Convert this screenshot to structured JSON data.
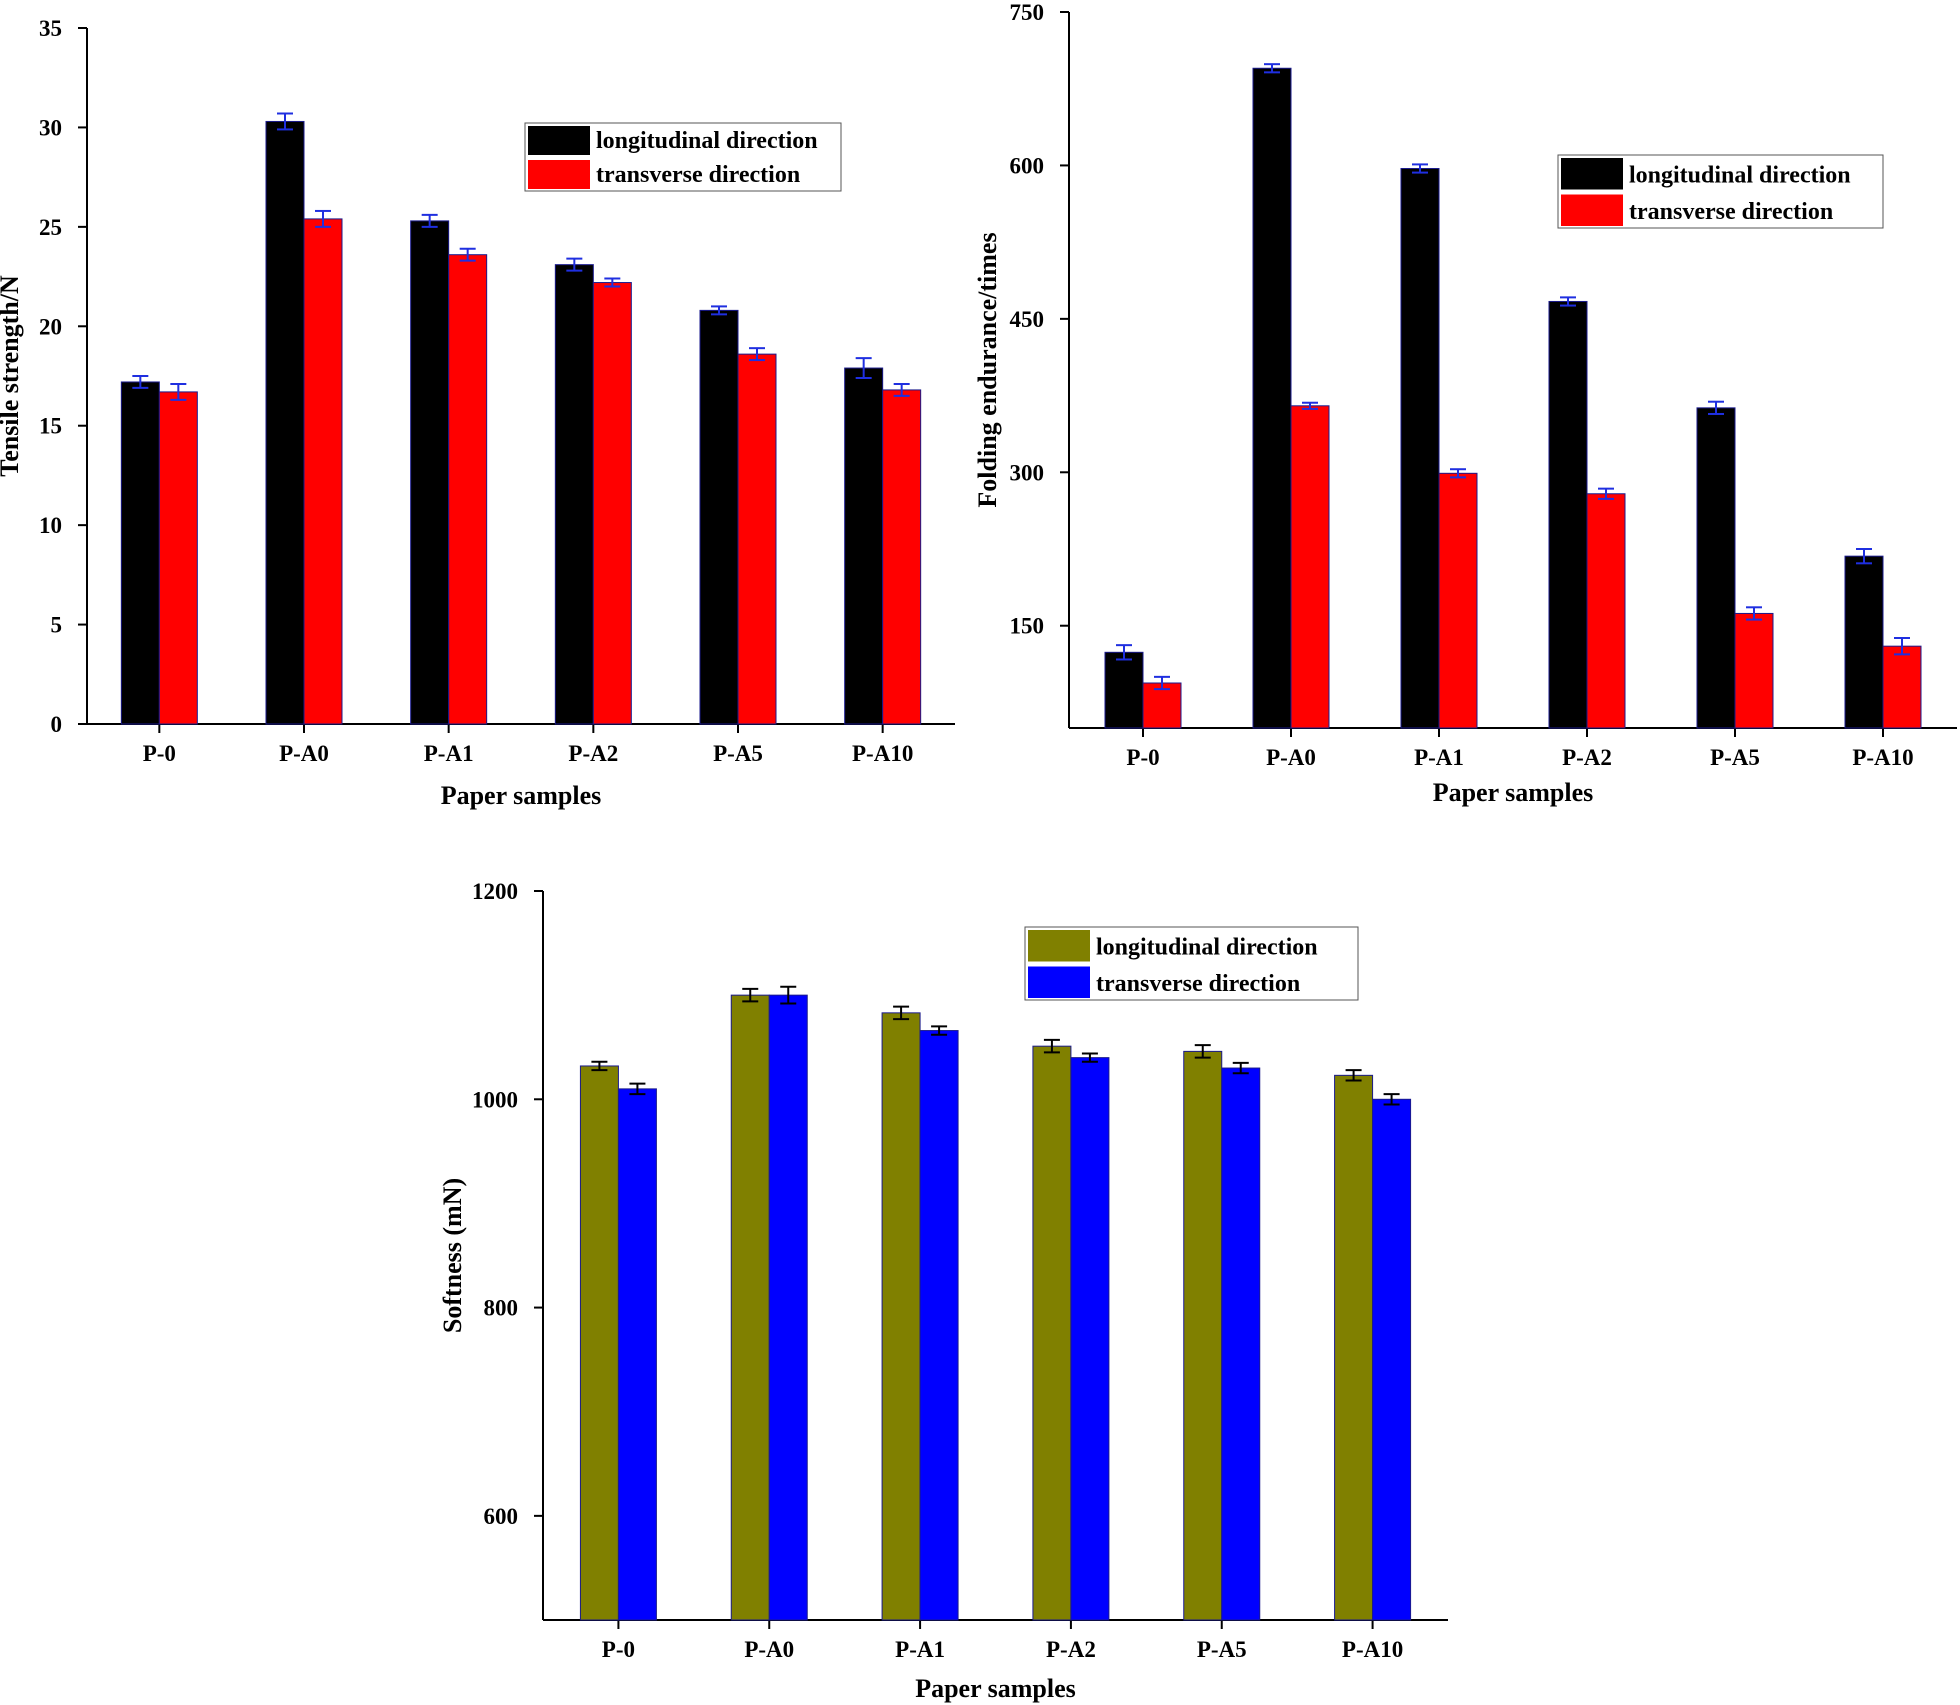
{
  "charts": [
    {
      "type": "bar",
      "categories": [
        "P-0",
        "P-A0",
        "P-A1",
        "P-A2",
        "P-A5",
        "P-A10"
      ],
      "xlabel": "Paper samples",
      "ylabel": "Tensile strength/N",
      "ylim": [
        0,
        35
      ],
      "yticks": [
        0,
        5,
        10,
        15,
        20,
        25,
        30,
        35
      ],
      "legend_position": "top-right",
      "series": [
        {
          "name": "longitudinal direction",
          "color": "#000000",
          "values": [
            17.2,
            30.3,
            25.3,
            23.1,
            20.8,
            17.9
          ],
          "errors": [
            0.3,
            0.4,
            0.3,
            0.3,
            0.2,
            0.5
          ]
        },
        {
          "name": "transverse direction",
          "color": "#ff0000",
          "values": [
            16.7,
            25.4,
            23.6,
            22.2,
            18.6,
            16.8
          ],
          "errors": [
            0.4,
            0.4,
            0.3,
            0.2,
            0.3,
            0.3
          ]
        }
      ]
    },
    {
      "type": "bar",
      "categories": [
        "P-0",
        "P-A0",
        "P-A1",
        "P-A2",
        "P-A5",
        "P-A10"
      ],
      "xlabel": "Paper samples",
      "ylabel": "Folding endurance/times",
      "ylim": [
        50,
        750
      ],
      "yticks": [
        150,
        300,
        450,
        600,
        750
      ],
      "legend_position": "top-right",
      "series": [
        {
          "name": "longitudinal direction",
          "color": "#000000",
          "values": [
            124,
            695,
            597,
            467,
            363,
            218
          ],
          "errors": [
            7,
            4,
            4,
            4,
            6,
            7
          ]
        },
        {
          "name": "transverse direction",
          "color": "#ff0000",
          "values": [
            94,
            365,
            299,
            279,
            162,
            130
          ],
          "errors": [
            6,
            3,
            4,
            5,
            6,
            8
          ]
        }
      ]
    },
    {
      "type": "bar",
      "categories": [
        "P-0",
        "P-A0",
        "P-A1",
        "P-A2",
        "P-A5",
        "P-A10"
      ],
      "xlabel": "Paper samples",
      "ylabel": "Softness (mN)",
      "ylim": [
        500,
        1200
      ],
      "yticks": [
        600,
        800,
        1000,
        1200
      ],
      "legend_position": "top-right",
      "series": [
        {
          "name": "longitudinal direction",
          "color": "#808000",
          "values": [
            1032,
            1100,
            1083,
            1051,
            1046,
            1023
          ],
          "errors": [
            4,
            6,
            6,
            6,
            6,
            5
          ]
        },
        {
          "name": "transverse direction",
          "color": "#0000ff",
          "values": [
            1010,
            1100,
            1066,
            1040,
            1030,
            1000
          ],
          "errors": [
            5,
            8,
            4,
            4,
            5,
            5
          ]
        }
      ]
    }
  ],
  "chart_data": [
    {
      "type": "bar",
      "xlabel": "Paper samples",
      "ylabel": "Tensile strength/N",
      "categories": [
        "P-0",
        "P-A0",
        "P-A1",
        "P-A2",
        "P-A5",
        "P-A10"
      ],
      "ylim": [
        0,
        35
      ],
      "series": [
        {
          "name": "longitudinal direction",
          "values": [
            17.2,
            30.3,
            25.3,
            23.1,
            20.8,
            17.9
          ]
        },
        {
          "name": "transverse direction",
          "values": [
            16.7,
            25.4,
            23.6,
            22.2,
            18.6,
            16.8
          ]
        }
      ]
    },
    {
      "type": "bar",
      "xlabel": "Paper samples",
      "ylabel": "Folding endurance/times",
      "categories": [
        "P-0",
        "P-A0",
        "P-A1",
        "P-A2",
        "P-A5",
        "P-A10"
      ],
      "ylim": [
        50,
        750
      ],
      "series": [
        {
          "name": "longitudinal direction",
          "values": [
            124,
            695,
            597,
            467,
            363,
            218
          ]
        },
        {
          "name": "transverse direction",
          "values": [
            94,
            365,
            299,
            279,
            162,
            130
          ]
        }
      ]
    },
    {
      "type": "bar",
      "xlabel": "Paper samples",
      "ylabel": "Softness (mN)",
      "categories": [
        "P-0",
        "P-A0",
        "P-A1",
        "P-A2",
        "P-A5",
        "P-A10"
      ],
      "ylim": [
        500,
        1200
      ],
      "series": [
        {
          "name": "longitudinal direction",
          "values": [
            1032,
            1100,
            1083,
            1051,
            1046,
            1023
          ]
        },
        {
          "name": "transverse direction",
          "values": [
            1010,
            1100,
            1066,
            1040,
            1030,
            1000
          ]
        }
      ]
    }
  ]
}
